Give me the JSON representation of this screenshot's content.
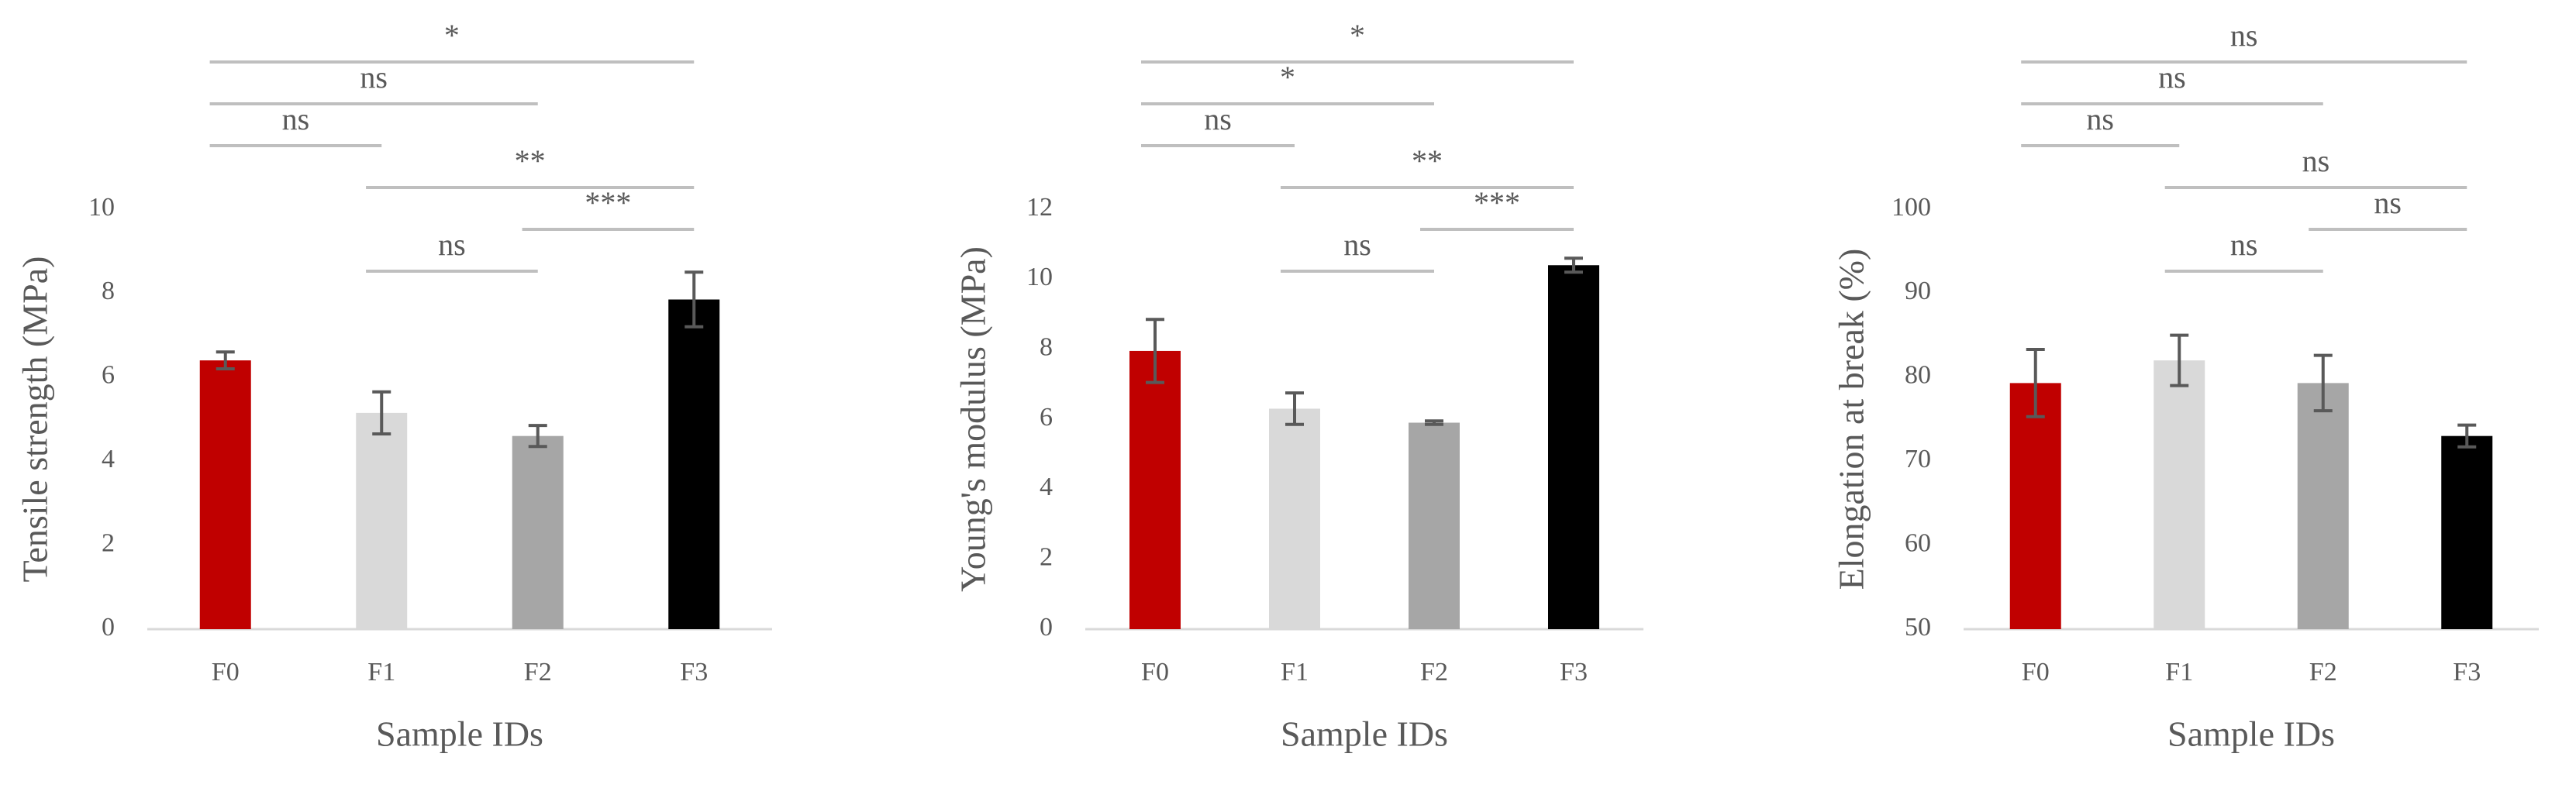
{
  "chart_data": [
    {
      "type": "bar",
      "y_label": "Tensile strength (MPa)",
      "x_label": "Sample IDs",
      "categories": [
        "F0",
        "F1",
        "F2",
        "F3"
      ],
      "values": [
        6.4,
        5.15,
        4.6,
        7.85
      ],
      "errors": [
        0.2,
        0.5,
        0.25,
        0.65
      ],
      "colors": [
        "#c00000",
        "#d9d9d9",
        "#a6a6a6",
        "#000000"
      ],
      "ylim": [
        0,
        10
      ],
      "yticks": [
        0,
        2,
        4,
        6,
        8,
        10
      ],
      "annotations": [
        {
          "from": "F0",
          "to": "F3",
          "label": "*"
        },
        {
          "from": "F0",
          "to": "F2",
          "label": "ns"
        },
        {
          "from": "F0",
          "to": "F1",
          "label": "ns"
        },
        {
          "from": "F1",
          "to": "F3",
          "label": "**"
        },
        {
          "from": "F2",
          "to": "F3",
          "label": "***"
        },
        {
          "from": "F1",
          "to": "F2",
          "label": "ns"
        }
      ]
    },
    {
      "type": "bar",
      "y_label": "Young's modulus (MPa)",
      "x_label": "Sample IDs",
      "categories": [
        "F0",
        "F1",
        "F2",
        "F3"
      ],
      "values": [
        7.95,
        6.3,
        5.9,
        10.4
      ],
      "errors": [
        0.9,
        0.45,
        0.05,
        0.2
      ],
      "colors": [
        "#c00000",
        "#d9d9d9",
        "#a6a6a6",
        "#000000"
      ],
      "ylim": [
        0,
        12
      ],
      "yticks": [
        0,
        2,
        4,
        6,
        8,
        10,
        12
      ],
      "annotations": [
        {
          "from": "F0",
          "to": "F3",
          "label": "*"
        },
        {
          "from": "F0",
          "to": "F2",
          "label": "*"
        },
        {
          "from": "F0",
          "to": "F1",
          "label": "ns"
        },
        {
          "from": "F1",
          "to": "F3",
          "label": "**"
        },
        {
          "from": "F2",
          "to": "F3",
          "label": "***"
        },
        {
          "from": "F1",
          "to": "F2",
          "label": "ns"
        }
      ]
    },
    {
      "type": "bar",
      "y_label": "Elongation at break (%)",
      "x_label": "Sample IDs",
      "categories": [
        "F0",
        "F1",
        "F2",
        "F3"
      ],
      "values": [
        79.3,
        82,
        79.3,
        73
      ],
      "errors": [
        4,
        3,
        3.3,
        1.3
      ],
      "colors": [
        "#c00000",
        "#d9d9d9",
        "#a6a6a6",
        "#000000"
      ],
      "ylim": [
        50,
        100
      ],
      "yticks": [
        50,
        60,
        70,
        80,
        90,
        100
      ],
      "annotations": [
        {
          "from": "F0",
          "to": "F3",
          "label": "ns"
        },
        {
          "from": "F0",
          "to": "F2",
          "label": "ns"
        },
        {
          "from": "F0",
          "to": "F1",
          "label": "ns"
        },
        {
          "from": "F1",
          "to": "F3",
          "label": "ns"
        },
        {
          "from": "F2",
          "to": "F3",
          "label": "ns"
        },
        {
          "from": "F1",
          "to": "F2",
          "label": "ns"
        }
      ]
    }
  ]
}
